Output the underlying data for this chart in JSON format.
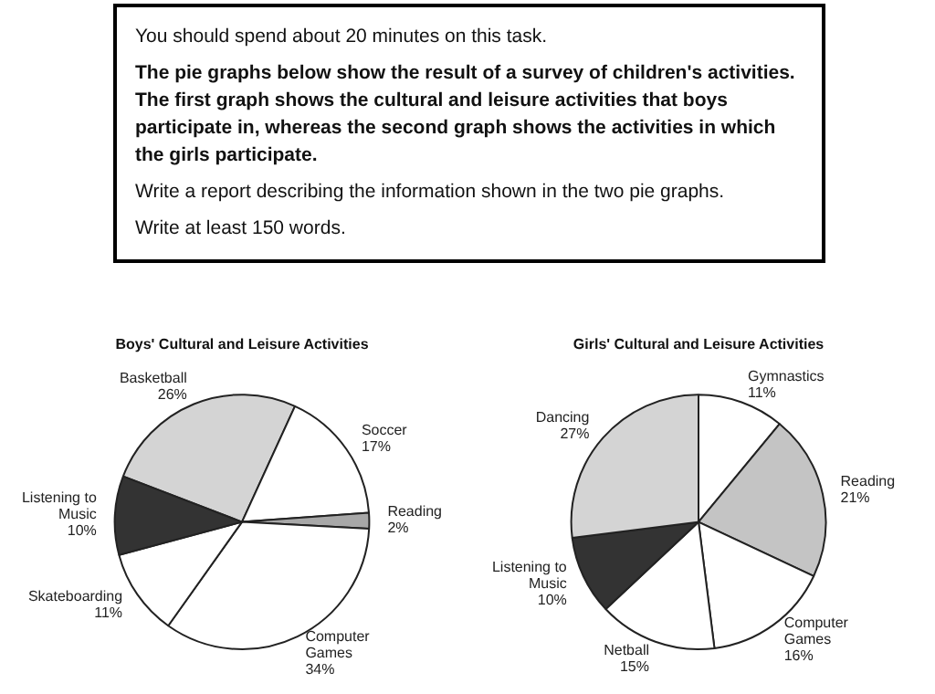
{
  "chart_data": [
    {
      "type": "other",
      "annotations": [
        "You should spend about 20 minutes on this task.",
        "The pie graphs below show the result of a survey of children's activities. The first graph shows the cultural and leisure activities that boys participate in, whereas the second graph shows the activities in which the girls participate.",
        "Write a report describing the information shown in the two pie graphs.",
        "Write at least 150 words."
      ]
    },
    {
      "type": "pie",
      "title": "Boys' Cultural and Leisure Activities",
      "categories": [
        "Basketball",
        "Soccer",
        "Reading",
        "Computer Games",
        "Skateboarding",
        "Listening to Music"
      ],
      "values": [
        26,
        17,
        2,
        34,
        11,
        10
      ],
      "value_labels": [
        "26%",
        "17%",
        "2%",
        "34%",
        "11%",
        "10%"
      ],
      "colors": [
        "#d4d4d4",
        "#ffffff",
        "#a8a8a8",
        "#ffffff",
        "#ffffff",
        "#333333"
      ]
    },
    {
      "type": "pie",
      "title": "Girls' Cultural and Leisure Activities",
      "categories": [
        "Gymnastics",
        "Reading",
        "Computer Games",
        "Netball",
        "Listening to Music",
        "Dancing"
      ],
      "values": [
        11,
        21,
        16,
        15,
        10,
        27
      ],
      "value_labels": [
        "11%",
        "21%",
        "16%",
        "15%",
        "10%",
        "27%"
      ],
      "colors": [
        "#ffffff",
        "#c4c4c4",
        "#ffffff",
        "#ffffff",
        "#333333",
        "#d4d4d4"
      ]
    }
  ]
}
